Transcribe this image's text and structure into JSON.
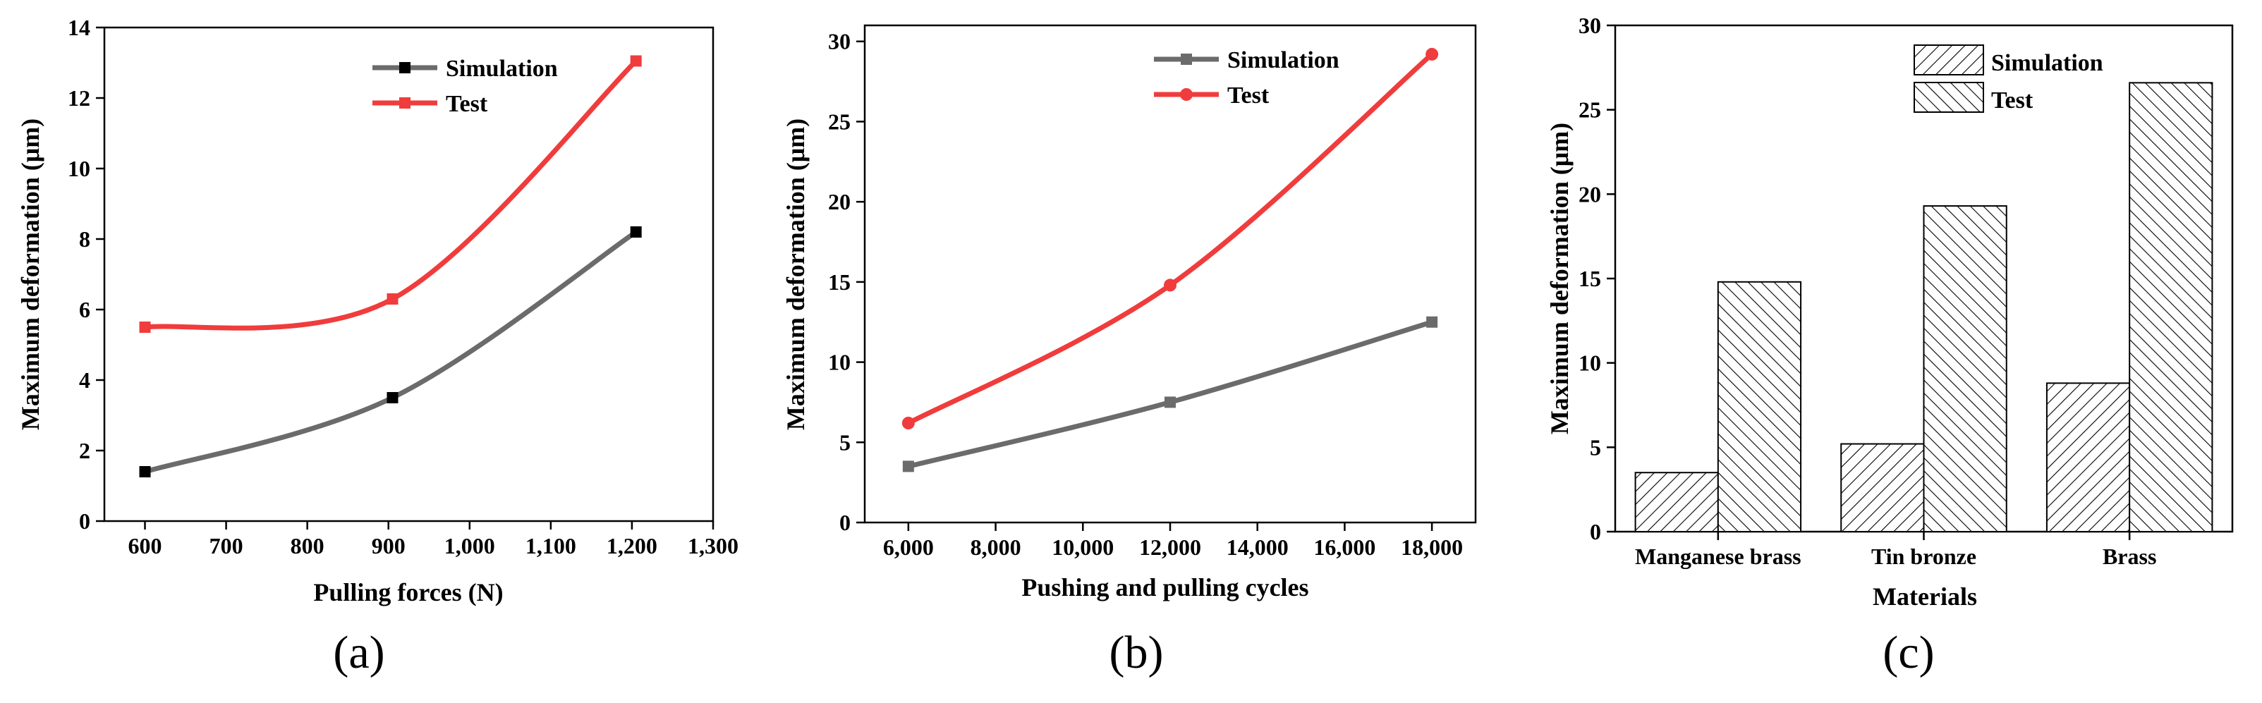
{
  "colors": {
    "simulation_line": "#6b6b6b",
    "simulation_marker": "#000000",
    "test": "#f03c3c",
    "axis": "#000000"
  },
  "chart_data": [
    {
      "type": "line",
      "panel_label": "(a)",
      "xlabel": "Pulling forces (N)",
      "ylabel": "Maximum deformation (μm)",
      "xlim": [
        550,
        1300
      ],
      "ylim": [
        0,
        14
      ],
      "xticks": [
        600,
        700,
        800,
        900,
        1000,
        1100,
        1200,
        1300
      ],
      "xtick_labels": [
        "600",
        "700",
        "800",
        "900",
        "1,000",
        "1,100",
        "1,200",
        "1,300"
      ],
      "yticks": [
        0,
        2,
        4,
        6,
        8,
        10,
        12,
        14
      ],
      "ytick_labels": [
        "0",
        "2",
        "4",
        "6",
        "8",
        "10",
        "12",
        "14"
      ],
      "legend": "top-right",
      "series": [
        {
          "name": "Simulation",
          "color": "#6b6b6b",
          "marker": "square",
          "marker_color": "#000000",
          "x": [
            600,
            905,
            1205
          ],
          "values": [
            1.4,
            3.5,
            8.2
          ]
        },
        {
          "name": "Test",
          "color": "#f03c3c",
          "marker": "square",
          "marker_color": "#f03c3c",
          "x": [
            600,
            905,
            1205
          ],
          "values": [
            5.5,
            6.3,
            13.05
          ]
        }
      ]
    },
    {
      "type": "line",
      "panel_label": "(b)",
      "xlabel": "Pushing and pulling cycles",
      "ylabel": "Maximum deformation (μm)",
      "xlim": [
        5000,
        19000
      ],
      "ylim": [
        0,
        31
      ],
      "xticks": [
        6000,
        8000,
        10000,
        12000,
        14000,
        16000,
        18000
      ],
      "xtick_labels": [
        "6,000",
        "8,000",
        "10,000",
        "12,000",
        "14,000",
        "16,000",
        "18,000"
      ],
      "yticks": [
        0,
        5,
        10,
        15,
        20,
        25,
        30
      ],
      "ytick_labels": [
        "0",
        "5",
        "10",
        "15",
        "20",
        "25",
        "30"
      ],
      "legend": "top-right",
      "series": [
        {
          "name": "Simulation",
          "color": "#6b6b6b",
          "marker": "square",
          "marker_color": "#6b6b6b",
          "x": [
            6000,
            12000,
            18000
          ],
          "values": [
            3.5,
            7.5,
            12.5
          ]
        },
        {
          "name": "Test",
          "color": "#f03c3c",
          "marker": "circle",
          "marker_color": "#f03c3c",
          "x": [
            6000,
            12000,
            18000
          ],
          "values": [
            6.2,
            14.8,
            29.2
          ]
        }
      ]
    },
    {
      "type": "bar",
      "panel_label": "(c)",
      "xlabel": "Materials",
      "ylabel": "Maximum deformation (μm)",
      "ylim": [
        0,
        30
      ],
      "yticks": [
        0,
        5,
        10,
        15,
        20,
        25,
        30
      ],
      "ytick_labels": [
        "0",
        "5",
        "10",
        "15",
        "20",
        "25",
        "30"
      ],
      "categories": [
        "Manganese brass",
        "Tin bronze",
        "Brass"
      ],
      "legend": "top-center",
      "series": [
        {
          "name": "Simulation",
          "pattern": "forward-hatch",
          "values": [
            3.5,
            5.2,
            8.8
          ]
        },
        {
          "name": "Test",
          "pattern": "back-hatch",
          "values": [
            14.8,
            19.3,
            26.6
          ]
        }
      ]
    }
  ]
}
